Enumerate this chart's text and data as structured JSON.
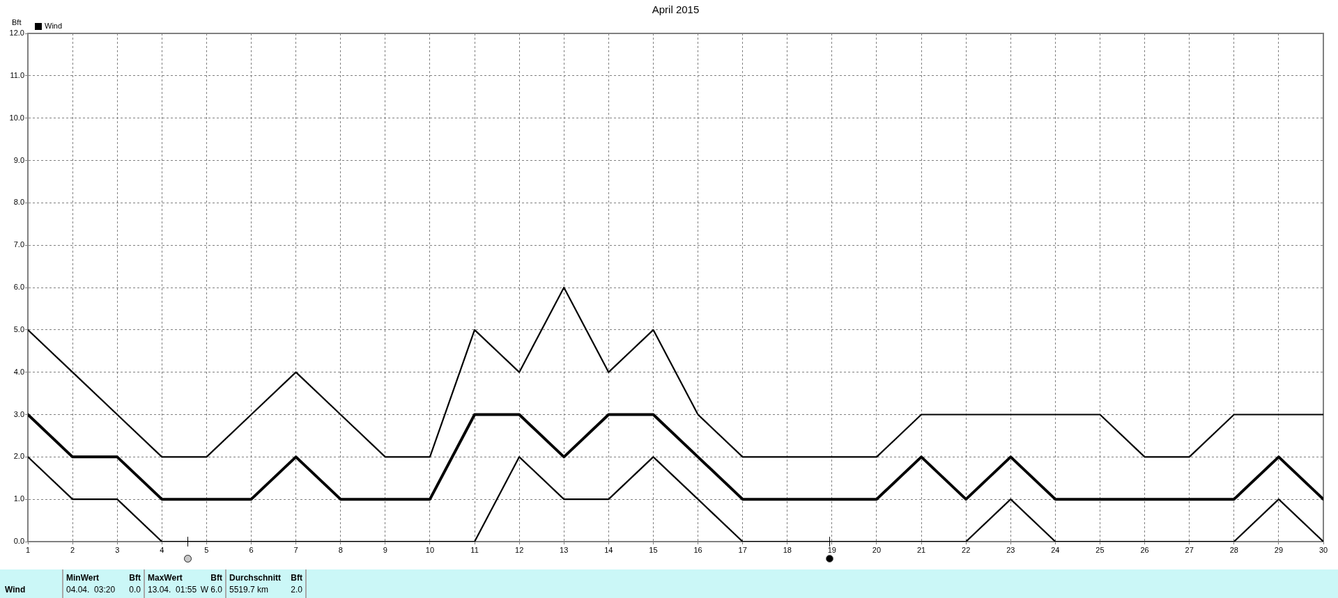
{
  "chart_data": {
    "type": "line",
    "title": "April 2015",
    "ylabel": "Bft",
    "x": [
      1,
      2,
      3,
      4,
      5,
      6,
      7,
      8,
      9,
      10,
      11,
      12,
      13,
      14,
      15,
      16,
      17,
      18,
      19,
      20,
      21,
      22,
      23,
      24,
      25,
      26,
      27,
      28,
      29,
      30
    ],
    "series": [
      {
        "color": "#000000",
        "values": [
          5,
          4,
          3,
          2,
          2,
          3,
          4,
          3,
          2,
          2,
          5,
          4,
          6,
          4,
          5,
          3,
          2,
          2,
          2,
          2,
          3,
          3,
          3,
          3,
          3,
          2,
          2,
          3,
          3,
          3
        ]
      },
      {
        "name": "Wind",
        "color": "#000000",
        "values": [
          3,
          2,
          2,
          1,
          1,
          1,
          2,
          1,
          1,
          1,
          3,
          3,
          2,
          3,
          3,
          2,
          1,
          1,
          1,
          1,
          2,
          1,
          2,
          1,
          1,
          1,
          1,
          1,
          2,
          1
        ]
      },
      {
        "color": "#000000",
        "values": [
          2,
          1,
          1,
          0,
          0,
          0,
          0,
          0,
          0,
          0,
          0,
          2,
          1,
          1,
          2,
          1,
          0,
          0,
          0,
          0,
          0,
          0,
          1,
          0,
          0,
          0,
          0,
          0,
          1,
          0
        ]
      }
    ],
    "xlim": [
      1,
      30
    ],
    "xticks": [
      1,
      2,
      3,
      4,
      5,
      6,
      7,
      8,
      9,
      10,
      11,
      12,
      13,
      14,
      15,
      16,
      17,
      18,
      19,
      20,
      21,
      22,
      23,
      24,
      25,
      26,
      27,
      28,
      29,
      30
    ],
    "ylim": [
      0,
      12
    ],
    "yticks": [
      {
        "value": 0,
        "label": "0.0"
      },
      {
        "value": 1,
        "label": "1.0"
      },
      {
        "value": 2,
        "label": "2.0"
      },
      {
        "value": 3,
        "label": "3.0"
      },
      {
        "value": 4,
        "label": "4.0"
      },
      {
        "value": 5,
        "label": "5.0"
      },
      {
        "value": 6,
        "label": "6.0"
      },
      {
        "value": 7,
        "label": "7.0"
      },
      {
        "value": 8,
        "label": "8.0"
      },
      {
        "value": 9,
        "label": "9.0"
      },
      {
        "value": 10,
        "label": "10.0"
      },
      {
        "value": 11,
        "label": "11.0"
      },
      {
        "value": 12,
        "label": "12.0"
      }
    ],
    "grid": true,
    "legend": "top left",
    "marker": "none",
    "line_style": "solid",
    "annotations": [
      "Wind",
      "MinWert",
      "Bft",
      "04.04.  03:20",
      "0.0",
      "MaxWert",
      "Bft",
      "13.04.  01:55",
      "W 6.0",
      "Durchschnitt",
      "Bft",
      "5519.7 km",
      "2.0"
    ]
  }
}
